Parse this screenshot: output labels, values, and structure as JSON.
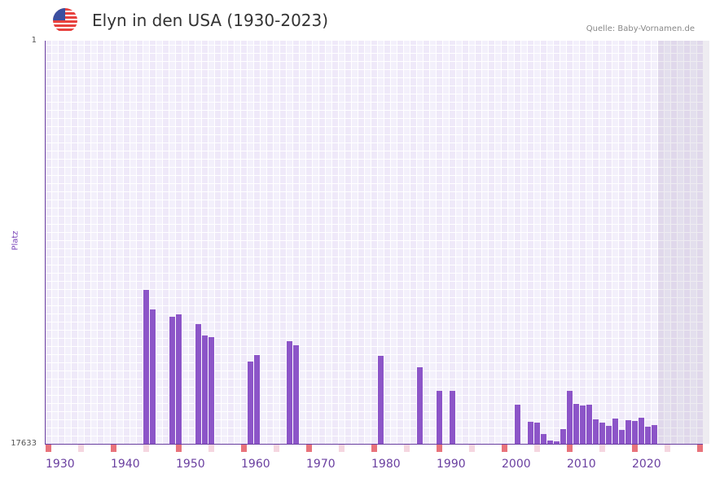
{
  "header": {
    "title": "Elyn in den USA (1930-2023)",
    "source": "Quelle: Baby-Vornamen.de",
    "flag_icon": "us-flag-icon"
  },
  "colors": {
    "bar": "#8c55c8",
    "decade_marker": "#e8737b",
    "half_decade_marker": "#f5d6e0",
    "axis": "#6a3fa0"
  },
  "chart_data": {
    "type": "bar",
    "title": "Elyn in den USA (1930-2023)",
    "xlabel": "",
    "ylabel": "Platz",
    "xlim": [
      1930,
      2030
    ],
    "ylim": [
      17633,
      1
    ],
    "yticks": [
      "1",
      "17633"
    ],
    "xticks": [
      "1930",
      "1940",
      "1950",
      "1960",
      "1970",
      "1980",
      "1990",
      "2000",
      "2010",
      "2020"
    ],
    "data_end_year": 2023,
    "x": [
      1945,
      1946,
      1949,
      1950,
      1953,
      1954,
      1955,
      1961,
      1962,
      1967,
      1968,
      1981,
      1987,
      1990,
      1992,
      2002,
      2004,
      2005,
      2006,
      2007,
      2008,
      2009,
      2010,
      2011,
      2012,
      2013,
      2014,
      2015,
      2016,
      2017,
      2018,
      2019,
      2020,
      2021,
      2022,
      2023
    ],
    "values": [
      10901,
      11755,
      12076,
      11969,
      12397,
      12895,
      12967,
      14035,
      13750,
      13145,
      13323,
      13786,
      14284,
      15318,
      15318,
      15923,
      16671,
      16707,
      17206,
      17491,
      17526,
      16992,
      15318,
      15888,
      15959,
      15923,
      16564,
      16707,
      16850,
      16529,
      17027,
      16600,
      16636,
      16493,
      16886,
      16814
    ]
  }
}
